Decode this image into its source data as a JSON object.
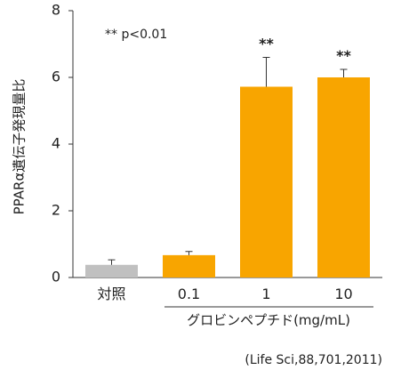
{
  "chart_data": {
    "type": "bar",
    "categories": [
      "対照",
      "0.1",
      "1",
      "10"
    ],
    "values": [
      0.38,
      0.67,
      5.72,
      6.0
    ],
    "errors": [
      0.15,
      0.11,
      0.88,
      0.24
    ],
    "colors": [
      "#c0c0c0",
      "#f8a500",
      "#f8a500",
      "#f8a500"
    ],
    "significance": [
      "",
      "",
      "**",
      "**"
    ],
    "ylim": [
      0,
      8
    ],
    "yticks": [
      "0",
      "2",
      "4",
      "6",
      "8"
    ],
    "ylabel": "PPARα遺伝子発現量比",
    "xgroup_label": "グロビンペプチド(mg/mL)",
    "annotation": "** p<0.01",
    "citation": "(Life Sci,88,701,2011)",
    "grid": false
  }
}
